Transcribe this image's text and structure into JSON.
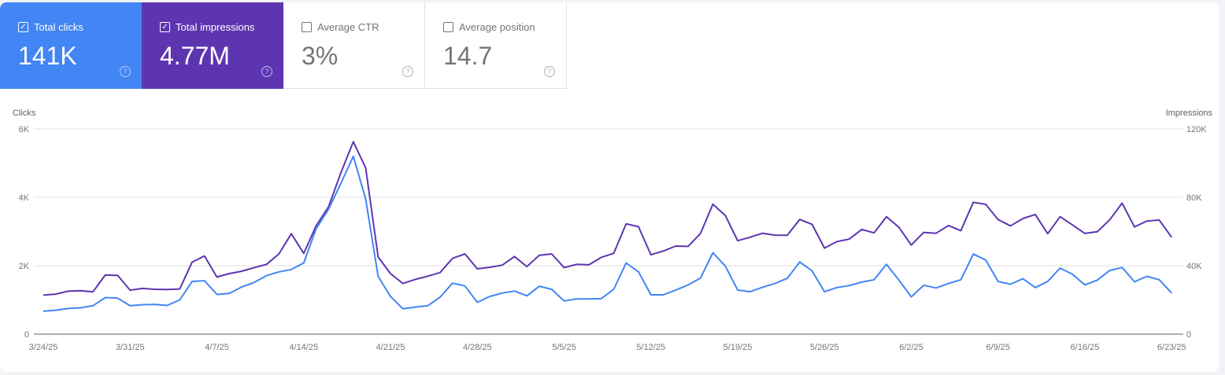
{
  "metrics": [
    {
      "label": "Total clicks",
      "value": "141K",
      "checked": true,
      "color": "#4285f4"
    },
    {
      "label": "Total impressions",
      "value": "4.77M",
      "checked": true,
      "color": "#5e35b1"
    },
    {
      "label": "Average CTR",
      "value": "3%",
      "checked": false
    },
    {
      "label": "Average position",
      "value": "14.7",
      "checked": false
    }
  ],
  "chart_data": {
    "type": "line",
    "left_axis_label": "Clicks",
    "right_axis_label": "Impressions",
    "left_ticks": [
      "0",
      "2K",
      "4K",
      "6K"
    ],
    "right_ticks": [
      "0",
      "40K",
      "80K",
      "120K"
    ],
    "left_ylim": [
      0,
      6000
    ],
    "right_ylim": [
      0,
      120000
    ],
    "grid": true,
    "x_ticks": [
      "3/24/25",
      "3/31/25",
      "4/7/25",
      "4/14/25",
      "4/21/25",
      "4/28/25",
      "5/5/25",
      "5/12/25",
      "5/19/25",
      "5/26/25",
      "6/2/25",
      "6/9/25",
      "6/16/25",
      "6/23/25"
    ],
    "x": [
      "3/24/25",
      "3/25/25",
      "3/26/25",
      "3/27/25",
      "3/28/25",
      "3/29/25",
      "3/30/25",
      "3/31/25",
      "4/1/25",
      "4/2/25",
      "4/3/25",
      "4/4/25",
      "4/5/25",
      "4/6/25",
      "4/7/25",
      "4/8/25",
      "4/9/25",
      "4/10/25",
      "4/11/25",
      "4/12/25",
      "4/13/25",
      "4/14/25",
      "4/15/25",
      "4/16/25",
      "4/17/25",
      "4/18/25",
      "4/19/25",
      "4/20/25",
      "4/21/25",
      "4/22/25",
      "4/23/25",
      "4/24/25",
      "4/25/25",
      "4/26/25",
      "4/27/25",
      "4/28/25",
      "4/29/25",
      "4/30/25",
      "5/1/25",
      "5/2/25",
      "5/3/25",
      "5/4/25",
      "5/5/25",
      "5/6/25",
      "5/7/25",
      "5/8/25",
      "5/9/25",
      "5/10/25",
      "5/11/25",
      "5/12/25",
      "5/13/25",
      "5/14/25",
      "5/15/25",
      "5/16/25",
      "5/17/25",
      "5/18/25",
      "5/19/25",
      "5/20/25",
      "5/21/25",
      "5/22/25",
      "5/23/25",
      "5/24/25",
      "5/25/25",
      "5/26/25",
      "5/27/25",
      "5/28/25",
      "5/29/25",
      "5/30/25",
      "5/31/25",
      "6/1/25",
      "6/2/25",
      "6/3/25",
      "6/4/25",
      "6/5/25",
      "6/6/25",
      "6/7/25",
      "6/8/25",
      "6/9/25",
      "6/10/25",
      "6/11/25",
      "6/12/25",
      "6/13/25",
      "6/14/25",
      "6/15/25",
      "6/16/25",
      "6/17/25",
      "6/18/25",
      "6/19/25",
      "6/20/25",
      "6/21/25",
      "6/22/25",
      "6/23/25"
    ],
    "series": [
      {
        "name": "Clicks",
        "axis": "left",
        "color": "#4285f4",
        "values": [
          670,
          700,
          750,
          770,
          830,
          1070,
          1050,
          830,
          860,
          870,
          840,
          1000,
          1540,
          1560,
          1160,
          1190,
          1380,
          1510,
          1710,
          1820,
          1890,
          2080,
          3080,
          3650,
          4410,
          5200,
          3950,
          1690,
          1100,
          740,
          790,
          830,
          1080,
          1490,
          1410,
          930,
          1100,
          1200,
          1260,
          1120,
          1400,
          1310,
          970,
          1030,
          1030,
          1040,
          1310,
          2080,
          1820,
          1150,
          1150,
          1290,
          1440,
          1640,
          2380,
          1990,
          1290,
          1240,
          1370,
          1480,
          1630,
          2110,
          1850,
          1240,
          1360,
          1420,
          1520,
          1590,
          2040,
          1580,
          1090,
          1430,
          1350,
          1480,
          1590,
          2340,
          2170,
          1540,
          1460,
          1620,
          1360,
          1540,
          1930,
          1750,
          1440,
          1580,
          1860,
          1950,
          1530,
          1690,
          1590,
          1200
        ]
      },
      {
        "name": "Impressions",
        "axis": "right",
        "color": "#5e35b1",
        "values": [
          22800,
          23400,
          25100,
          25400,
          24700,
          34600,
          34300,
          25700,
          26700,
          26200,
          26100,
          26400,
          42100,
          45700,
          33400,
          35400,
          36800,
          38900,
          40800,
          46900,
          58700,
          47200,
          63300,
          74500,
          94400,
          112500,
          97200,
          45100,
          35400,
          29600,
          32000,
          33900,
          36000,
          44300,
          46900,
          38200,
          39100,
          40300,
          45400,
          39500,
          46100,
          46900,
          38900,
          40800,
          40500,
          44900,
          47200,
          64500,
          62800,
          46400,
          48600,
          51500,
          51300,
          58900,
          76000,
          69400,
          54600,
          56700,
          59000,
          57900,
          57800,
          67100,
          64200,
          50300,
          54100,
          55600,
          61200,
          59200,
          68700,
          62500,
          52100,
          59500,
          59000,
          63500,
          60500,
          77100,
          75900,
          67000,
          63300,
          67600,
          70000,
          58700,
          68700,
          63800,
          58900,
          59900,
          66800,
          76600,
          62700,
          66100,
          66700,
          56600
        ]
      }
    ]
  }
}
